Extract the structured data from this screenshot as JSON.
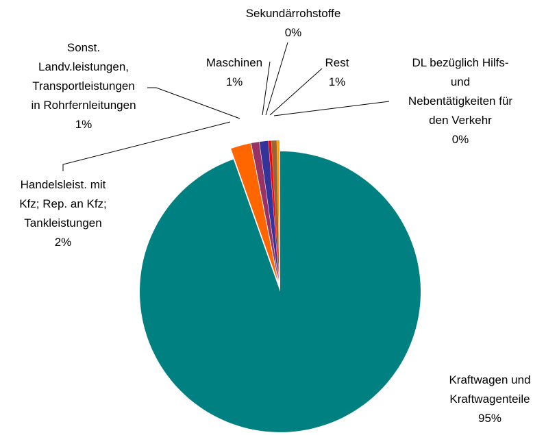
{
  "chart_data": {
    "type": "pie",
    "categories": [
      "Kraftwagen und\nKraftwagenteile",
      "Handelsleist. mit\nKfz; Rep. an Kfz;\nTankleistungen",
      "Sonst.\nLandv.leistungen,\nTransportleistungen\nin Rohrfernleitungen",
      "Maschinen",
      "Sekundärrohstoffe",
      "Rest",
      "DL bezüglich Hilfs-\nund\nNebentätigkeiten für\nden Verkehr"
    ],
    "values": [
      94.6,
      2.3,
      0.9,
      1.0,
      0.3,
      0.6,
      0.3
    ],
    "value_labels": [
      "95%",
      "2%",
      "1%",
      "1%",
      "0%",
      "1%",
      "0%"
    ],
    "colors": [
      "#008080",
      "#ff6600",
      "#993366",
      "#333399",
      "#ff0000",
      "#996633",
      "#ff9900"
    ]
  }
}
